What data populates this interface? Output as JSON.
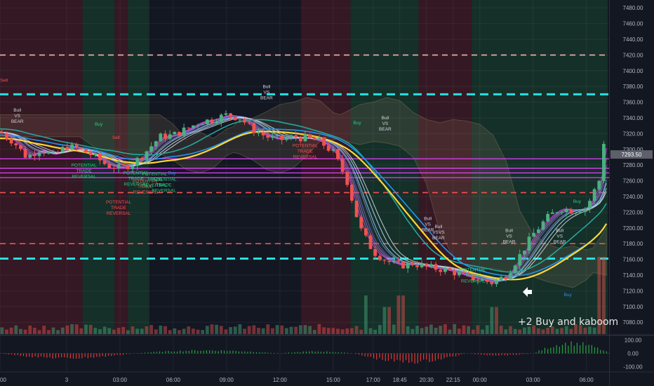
{
  "chart_data": {
    "type": "candlestick",
    "price_axis": {
      "ticks": [
        "7480.00",
        "7460.00",
        "7440.00",
        "7420.00",
        "7400.00",
        "7380.00",
        "7360.00",
        "7340.00",
        "7320.00",
        "7300.00",
        "7280.00",
        "7260.00",
        "7240.00",
        "7220.00",
        "7200.00",
        "7180.00",
        "7160.00",
        "7140.00",
        "7120.00",
        "7100.00",
        "7080.00"
      ],
      "range": [
        7065,
        7490
      ],
      "current_price": "7293.50",
      "current_price_value": 7293.5
    },
    "oscillator_axis": {
      "ticks": [
        "100.00",
        "0.00",
        "-100.00"
      ],
      "range": [
        -130,
        130
      ]
    },
    "time_axis": {
      "ticks": [
        "00",
        "3",
        "03:00",
        "06:00",
        "09:00",
        "12:00",
        "15:00",
        "17:00",
        "18:45",
        "20:30",
        "22:15",
        "00:00",
        "03:00",
        "06:00"
      ],
      "tick_hours": [
        0,
        5,
        9,
        13,
        17,
        21,
        25,
        28,
        30,
        32,
        34,
        36,
        40,
        44
      ]
    },
    "grid": true,
    "horizontal_levels": [
      {
        "price": 7420,
        "color": "#f6b2b2",
        "style": "dashed"
      },
      {
        "price": 7370,
        "color": "#26e0e0",
        "style": "dashed"
      },
      {
        "price": 7288,
        "color": "#e040fb",
        "style": "solid"
      },
      {
        "price": 7276,
        "color": "#e040fb",
        "style": "solid"
      },
      {
        "price": 7270,
        "color": "#e040fb",
        "style": "solid"
      },
      {
        "price": 7264,
        "color": "#e040fb",
        "style": "solid"
      },
      {
        "price": 7245,
        "color": "#ef5350",
        "style": "dashed"
      },
      {
        "price": 7180,
        "color": "#ef5350",
        "style": "dashed"
      },
      {
        "price": 7161,
        "color": "#26e0e0",
        "style": "dashed"
      }
    ],
    "background_zones": [
      {
        "from": 0,
        "to": 6.2,
        "trend": "bear"
      },
      {
        "from": 6.2,
        "to": 8.6,
        "trend": "bull"
      },
      {
        "from": 8.6,
        "to": 9.6,
        "trend": "bear"
      },
      {
        "from": 9.6,
        "to": 11.2,
        "trend": "bull"
      },
      {
        "from": 11.2,
        "to": 22.6,
        "trend": "neutral"
      },
      {
        "from": 22.6,
        "to": 26.3,
        "trend": "bear"
      },
      {
        "from": 26.3,
        "to": 31.4,
        "trend": "bull"
      },
      {
        "from": 31.4,
        "to": 35.4,
        "trend": "bear"
      },
      {
        "from": 35.4,
        "to": 45.6,
        "trend": "bull"
      }
    ],
    "price_path": [
      [
        0,
        7322
      ],
      [
        1,
        7310
      ],
      [
        2,
        7290
      ],
      [
        3,
        7300
      ],
      [
        4,
        7292
      ],
      [
        5,
        7304
      ],
      [
        6,
        7300
      ],
      [
        7,
        7292
      ],
      [
        8,
        7280
      ],
      [
        9,
        7276
      ],
      [
        10,
        7282
      ],
      [
        11,
        7298
      ],
      [
        12,
        7316
      ],
      [
        13,
        7318
      ],
      [
        14,
        7326
      ],
      [
        15,
        7335
      ],
      [
        16,
        7338
      ],
      [
        17,
        7344
      ],
      [
        18,
        7340
      ],
      [
        19,
        7325
      ],
      [
        20,
        7316
      ],
      [
        21,
        7312
      ],
      [
        22,
        7316
      ],
      [
        23,
        7314
      ],
      [
        24,
        7310
      ],
      [
        25,
        7296
      ],
      [
        26,
        7262
      ],
      [
        27,
        7200
      ],
      [
        28,
        7170
      ],
      [
        29,
        7158
      ],
      [
        30,
        7152
      ],
      [
        31,
        7155
      ],
      [
        32,
        7150
      ],
      [
        33,
        7148
      ],
      [
        34,
        7144
      ],
      [
        35,
        7138
      ],
      [
        36,
        7134
      ],
      [
        37,
        7130
      ],
      [
        38,
        7140
      ],
      [
        39,
        7165
      ],
      [
        40,
        7192
      ],
      [
        41,
        7212
      ],
      [
        42,
        7225
      ],
      [
        43,
        7222
      ],
      [
        44,
        7226
      ],
      [
        45,
        7262
      ],
      [
        46,
        7420
      ],
      [
        47,
        7485
      ]
    ],
    "volume_spikes": [
      [
        27.5,
        0.5
      ],
      [
        29,
        0.35
      ],
      [
        30,
        0.5
      ],
      [
        37,
        0.35
      ],
      [
        45.2,
        1.0
      ],
      [
        45.7,
        0.7
      ]
    ],
    "oscillator_segments": [
      {
        "from": 0,
        "to": 10,
        "sign": -1,
        "peak": 45
      },
      {
        "from": 10,
        "to": 21,
        "sign": 1,
        "peak": 28
      },
      {
        "from": 21,
        "to": 26.5,
        "sign": 1,
        "peak": 18
      },
      {
        "from": 26.5,
        "to": 35,
        "sign": -1,
        "peak": 80
      },
      {
        "from": 35,
        "to": 40,
        "sign": -1,
        "peak": 18
      },
      {
        "from": 40,
        "to": 45.8,
        "sign": 1,
        "peak": 95
      }
    ],
    "signals": [
      {
        "lines": [
          "Sell"
        ],
        "h": 0.3,
        "p": 7386,
        "color": "#ef5350"
      },
      {
        "lines": [
          "Bull",
          "VS",
          "BEAR"
        ],
        "h": 1.3,
        "p": 7348,
        "color": "#d1d4dc"
      },
      {
        "lines": [
          "Buy"
        ],
        "h": 7.4,
        "p": 7330,
        "color": "#26d07c"
      },
      {
        "lines": [
          "Sell"
        ],
        "h": 8.7,
        "p": 7313,
        "color": "#ef5350"
      },
      {
        "lines": [
          "Bull",
          "VS",
          "BEAR"
        ],
        "h": 20.0,
        "p": 7378,
        "color": "#d1d4dc"
      },
      {
        "lines": [
          "Sell"
        ],
        "h": 24.2,
        "p": 7312,
        "color": "#ef5350"
      },
      {
        "lines": [
          "Bull",
          "VS",
          "BEAR"
        ],
        "h": 28.9,
        "p": 7338,
        "color": "#d1d4dc"
      },
      {
        "lines": [
          "POTENTIAL",
          "TRADE",
          "REVERSAL"
        ],
        "h": 6.3,
        "p": 7278,
        "color": "#26d07c"
      },
      {
        "lines": [
          "POTENTIAL",
          "TRADE",
          "REVERSAL"
        ],
        "h": 8.9,
        "p": 7231,
        "color": "#ef5350"
      },
      {
        "lines": [
          "POTENTIAL",
          "TRADE",
          "REVERSAL"
        ],
        "h": 10.2,
        "p": 7268,
        "color": "#26d07c"
      },
      {
        "lines": [
          "POTENTIAL",
          "TRADE",
          "REVERSAL"
        ],
        "h": 10.9,
        "p": 7258,
        "color": "#ef5350"
      },
      {
        "lines": [
          "POTENTIAL",
          "TRADE",
          "REVERSAL"
        ],
        "h": 11.6,
        "p": 7267,
        "color": "#26d07c"
      },
      {
        "lines": [
          "POTENTIAL",
          "TRADE",
          "REVERSAL"
        ],
        "h": 12.3,
        "p": 7260,
        "color": "#26d07c"
      },
      {
        "lines": [
          "POTENTIAL",
          "TRADE",
          "REVERSAL"
        ],
        "h": 22.9,
        "p": 7303,
        "color": "#ef5350"
      },
      {
        "lines": [
          "Bull",
          "VS",
          "BEAR"
        ],
        "h": 32.1,
        "p": 7210,
        "color": "#d1d4dc"
      },
      {
        "lines": [
          "Bull",
          "VSVS",
          "BEAR"
        ],
        "h": 32.9,
        "p": 7200,
        "color": "#d1d4dc"
      },
      {
        "lines": [
          "POTENTIAL",
          "TRADE",
          "REVERSAL"
        ],
        "h": 35.5,
        "p": 7145,
        "color": "#26d07c"
      },
      {
        "lines": [
          "Bull",
          "VS",
          "BEAR"
        ],
        "h": 38.2,
        "p": 7195,
        "color": "#d1d4dc"
      },
      {
        "lines": [
          "Bull",
          "VS",
          "BEAR"
        ],
        "h": 42.0,
        "p": 7195,
        "color": "#d1d4dc"
      },
      {
        "lines": [
          "Buy"
        ],
        "h": 43.3,
        "p": 7232,
        "color": "#26d07c"
      },
      {
        "lines": [
          "Buy"
        ],
        "h": 42.6,
        "p": 7113,
        "color": "#2196f3"
      },
      {
        "lines": [
          "Buy"
        ],
        "h": 12.9,
        "p": 7268,
        "color": "#2196f3"
      },
      {
        "lines": [
          "Buy"
        ],
        "h": 26.8,
        "p": 7332,
        "color": "#26d07c"
      }
    ]
  },
  "annotation": "+2 Buy and kaboom",
  "colors": {
    "background": "#131722",
    "bull_candle": "#4caf80",
    "bear_candle": "#ef5350",
    "bull_zone": "rgba(30,110,60,0.28)",
    "bear_zone": "rgba(140,30,40,0.28)",
    "axis_text": "#b2b5be",
    "price_label_bg": "#5d606b"
  }
}
